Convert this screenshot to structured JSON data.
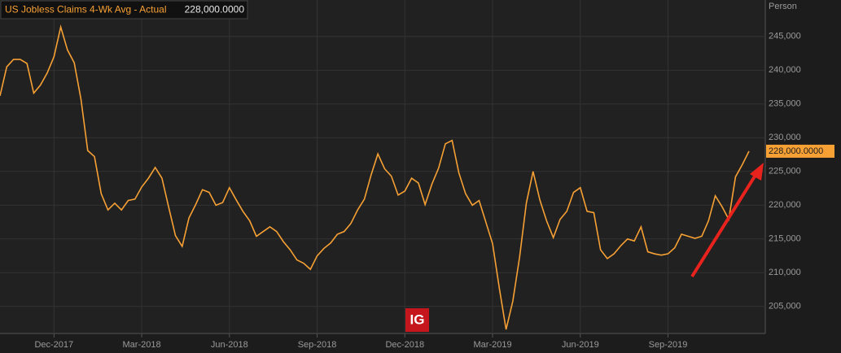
{
  "chart_data": {
    "type": "line",
    "title": "US Jobless Claims 4-Wk Avg - Actual",
    "legend_value": "228,000.0000",
    "last_value_label": "228,000.0000",
    "y_axis_label": "Person",
    "watermark": "IG",
    "categories": [
      null,
      null,
      null,
      null,
      null,
      null,
      null,
      null,
      "Dec-2017",
      null,
      null,
      null,
      null,
      null,
      null,
      null,
      null,
      null,
      null,
      null,
      null,
      "Mar-2018",
      null,
      null,
      null,
      null,
      null,
      null,
      null,
      null,
      null,
      null,
      null,
      null,
      "Jun-2018",
      null,
      null,
      null,
      null,
      null,
      null,
      null,
      null,
      null,
      null,
      null,
      null,
      "Sep-2018",
      null,
      null,
      null,
      null,
      null,
      null,
      null,
      null,
      null,
      null,
      null,
      null,
      "Dec-2018",
      null,
      null,
      null,
      null,
      null,
      null,
      null,
      null,
      null,
      null,
      null,
      null,
      "Mar-2019",
      null,
      null,
      null,
      null,
      null,
      null,
      null,
      null,
      null,
      null,
      null,
      null,
      "Jun-2019",
      null,
      null,
      null,
      null,
      null,
      null,
      null,
      null,
      null,
      null,
      null,
      null,
      "Sep-2019",
      null,
      null,
      null,
      null,
      null,
      null,
      null,
      null,
      null,
      null,
      null,
      null
    ],
    "series": [
      {
        "name": "US Jobless Claims 4-Wk Avg - Actual",
        "color": "#f7a034",
        "values": [
          236200,
          240500,
          241600,
          241600,
          241000,
          236600,
          237800,
          239600,
          242000,
          246400,
          243000,
          241100,
          235700,
          228100,
          227200,
          221700,
          219300,
          220300,
          219300,
          220700,
          220900,
          222700,
          224000,
          225600,
          224000,
          219700,
          215500,
          213900,
          218100,
          220100,
          222300,
          221900,
          220000,
          220400,
          222600,
          220800,
          219100,
          217700,
          215400,
          216100,
          216800,
          216100,
          214600,
          213400,
          211900,
          211400,
          210500,
          212500,
          213600,
          214400,
          215700,
          216100,
          217300,
          219300,
          220900,
          224500,
          227600,
          225400,
          224300,
          221500,
          222100,
          224000,
          223300,
          220100,
          223100,
          225500,
          229100,
          229600,
          224800,
          221700,
          220000,
          220700,
          217500,
          214300,
          207700,
          201600,
          205800,
          212300,
          220300,
          225000,
          220800,
          217700,
          215200,
          217900,
          219100,
          221900,
          222600,
          219100,
          218900,
          213400,
          212100,
          212800,
          214000,
          215000,
          214700,
          216800,
          213100,
          212800,
          212600,
          212800,
          213700,
          215700,
          215400,
          215100,
          215400,
          217700,
          221400,
          219800,
          217900,
          224200,
          226000,
          228000
        ]
      }
    ],
    "ylim": [
      201000,
      250400
    ],
    "yticks": [
      {
        "value": 205000,
        "label": "205,000"
      },
      {
        "value": 210000,
        "label": "210,000"
      },
      {
        "value": 215000,
        "label": "215,000"
      },
      {
        "value": 220000,
        "label": "220,000"
      },
      {
        "value": 225000,
        "label": "225,000"
      },
      {
        "value": 230000,
        "label": "230,000"
      },
      {
        "value": 235000,
        "label": "235,000"
      },
      {
        "value": 240000,
        "label": "240,000"
      },
      {
        "value": 245000,
        "label": "245,000"
      }
    ],
    "grid": true
  }
}
